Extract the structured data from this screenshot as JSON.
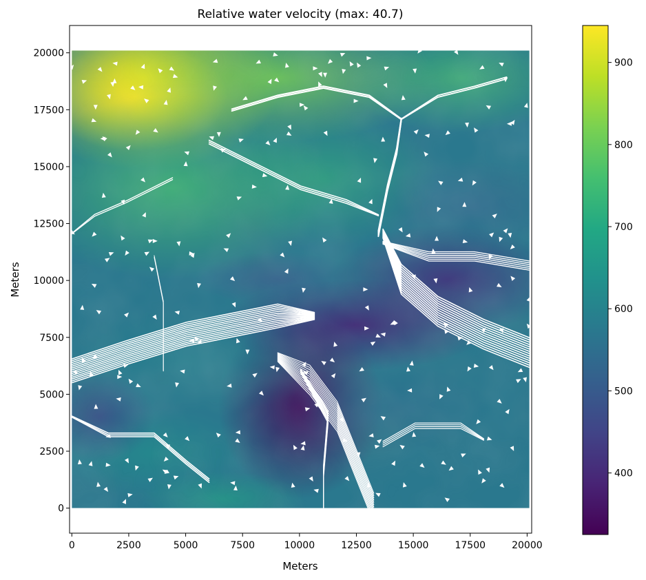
{
  "chart_data": {
    "type": "heatmap",
    "title": "Relative water velocity (max: 40.7)",
    "xlabel": "Meters",
    "ylabel": "Meters",
    "xlim": [
      -100,
      20200
    ],
    "ylim": [
      -1100,
      21200
    ],
    "extent": [
      0,
      20100,
      0,
      20100
    ],
    "x_ticks": [
      0,
      2500,
      5000,
      7500,
      10000,
      12500,
      15000,
      17500,
      20000
    ],
    "x_tick_labels": [
      "0",
      "2500",
      "5000",
      "7500",
      "10000",
      "12500",
      "15000",
      "17500",
      "20000"
    ],
    "y_ticks": [
      0,
      2500,
      5000,
      7500,
      10000,
      12500,
      15000,
      17500,
      20000
    ],
    "y_tick_labels": [
      "0",
      "2500",
      "5000",
      "7500",
      "10000",
      "12500",
      "15000",
      "17500",
      "20000"
    ],
    "colorbar": {
      "colormap": "viridis",
      "range": [
        325,
        945
      ],
      "ticks": [
        400,
        500,
        600,
        700,
        800,
        900
      ],
      "tick_labels": [
        "400",
        "500",
        "600",
        "700",
        "800",
        "900"
      ]
    },
    "overlay": "streamlines (white)",
    "grid": false
  }
}
